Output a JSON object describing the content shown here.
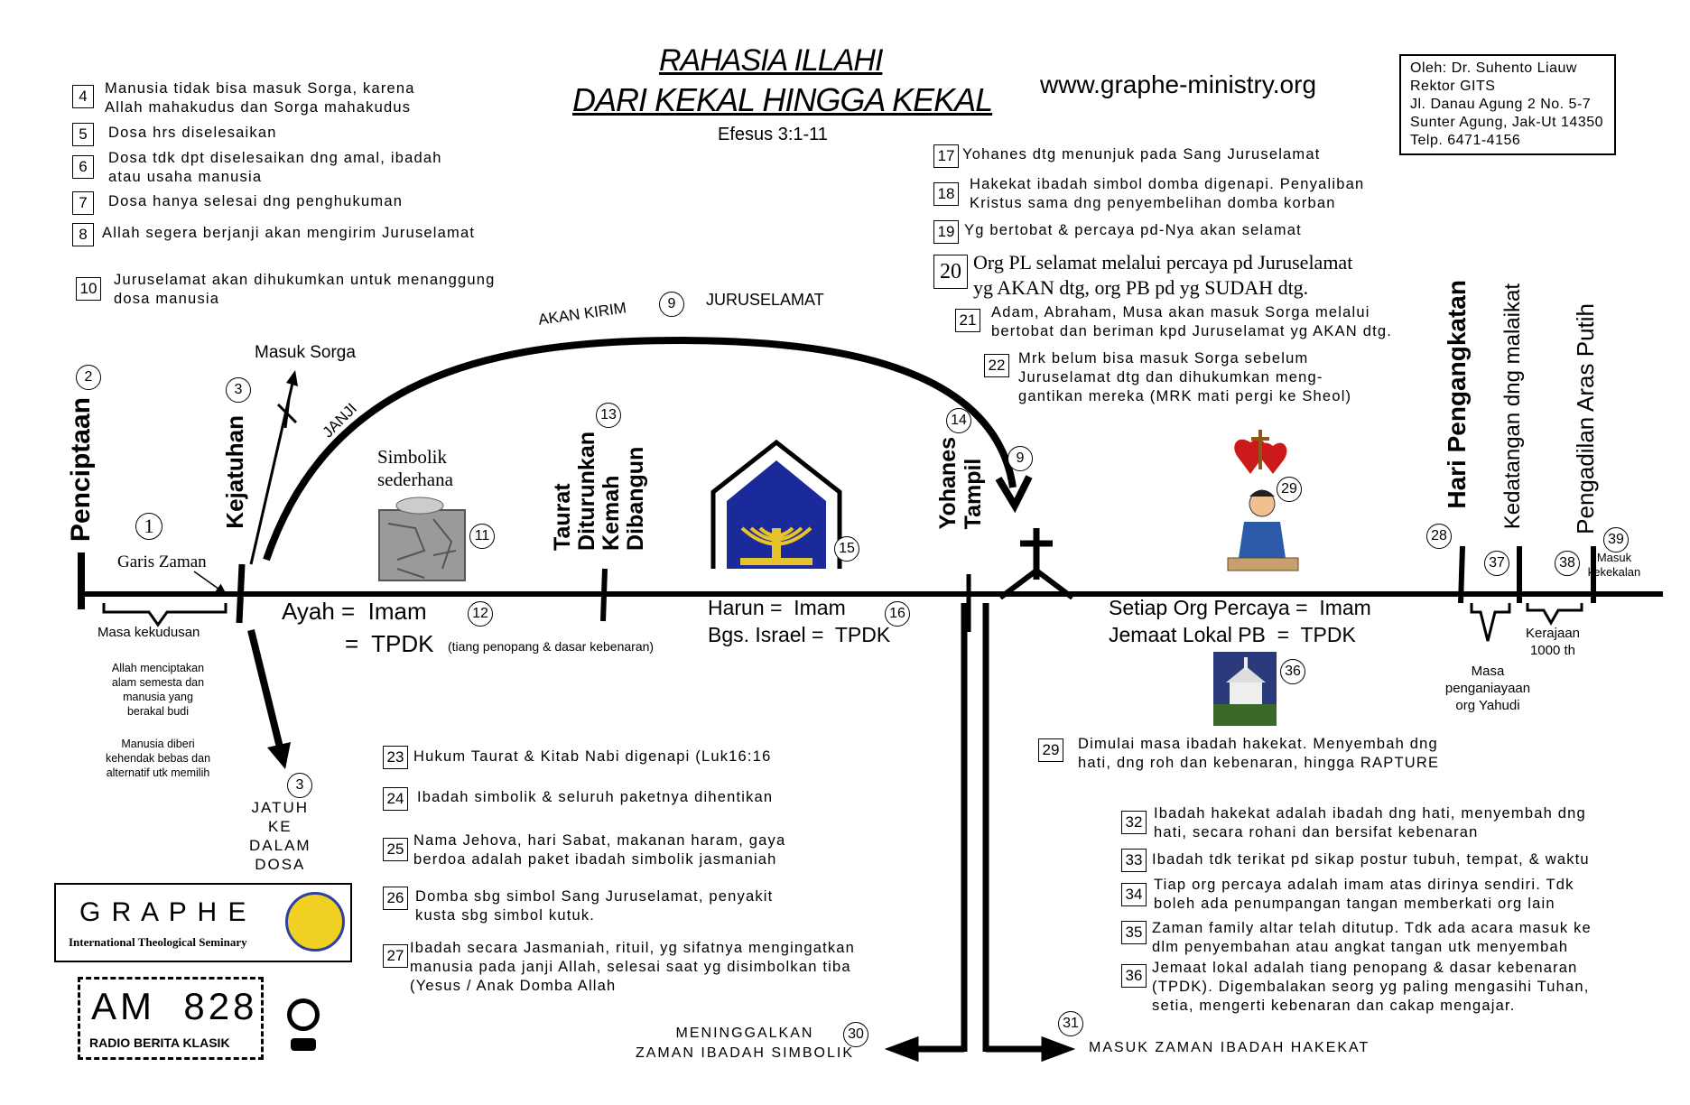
{
  "title": {
    "line1": "RAHASIA ILLAHI",
    "line2": "DARI KEKAL HINGGA KEKAL",
    "ref": "Efesus 3:1-11"
  },
  "website": "www.graphe-ministry.org",
  "author": {
    "line1": "Oleh: Dr. Suhento Liauw",
    "line2": "Rektor  GITS",
    "line3": "Jl. Danau Agung 2 No. 5-7",
    "line4": "Sunter Agung, Jak-Ut 14350",
    "line5": "Telp. 6471-4156"
  },
  "notes": [
    {
      "num": "4",
      "text": "Manusia tidak bisa masuk Sorga, karena\nAllah mahakudus dan Sorga mahakudus"
    },
    {
      "num": "5",
      "text": "Dosa hrs diselesaikan"
    },
    {
      "num": "6",
      "text": "Dosa tdk dpt diselesaikan dng amal, ibadah\natau usaha manusia"
    },
    {
      "num": "7",
      "text": "Dosa hanya selesai dng penghukuman"
    },
    {
      "num": "8",
      "text": "Allah segera berjanji akan mengirim Juruselamat"
    },
    {
      "num": "10",
      "text": "Juruselamat akan dihukumkan untuk menanggung\ndosa manusia"
    },
    {
      "num": "17",
      "text": "Yohanes dtg menunjuk pada Sang Juruselamat"
    },
    {
      "num": "18",
      "text": "Hakekat ibadah simbol domba digenapi.  Penyaliban\nKristus sama dng penyembelihan domba korban"
    },
    {
      "num": "19",
      "text": "Yg bertobat & percaya pd-Nya akan selamat"
    },
    {
      "num": "20",
      "text": "Org PL selamat melalui percaya pd Juruselamat\nyg AKAN dtg, org PB pd yg SUDAH dtg."
    },
    {
      "num": "21",
      "text": "Adam, Abraham, Musa akan masuk Sorga melalui\nbertobat dan beriman kpd Juruselamat yg AKAN dtg."
    },
    {
      "num": "22",
      "text": "Mrk belum bisa masuk Sorga sebelum\nJuruselamat dtg dan dihukumkan meng-\ngantikan mereka (MRK mati pergi ke Sheol)"
    },
    {
      "num": "23",
      "text": "Hukum Taurat & Kitab Nabi digenapi (Luk16:16"
    },
    {
      "num": "24",
      "text": "Ibadah simbolik & seluruh paketnya dihentikan"
    },
    {
      "num": "25",
      "text": "Nama Jehova, hari Sabat, makanan haram, gaya\nberdoa adalah paket ibadah simbolik jasmaniah"
    },
    {
      "num": "26",
      "text": "Domba sbg simbol Sang Juruselamat, penyakit\nkusta sbg simbol kutuk."
    },
    {
      "num": "27",
      "text": "Ibadah secara Jasmaniah, rituil, yg sifatnya mengingatkan\nmanusia pada janji Allah, selesai saat yg disimbolkan tiba\n(Yesus / Anak Domba Allah"
    },
    {
      "num": "29",
      "text": "Dimulai masa ibadah hakekat.  Menyembah dng\nhati, dng roh dan kebenaran, hingga RAPTURE"
    },
    {
      "num": "32",
      "text": "Ibadah hakekat adalah ibadah dng hati, menyembah dng\nhati, secara rohani dan bersifat kebenaran"
    },
    {
      "num": "33",
      "text": "Ibadah tdk terikat pd sikap postur tubuh, tempat, & waktu"
    },
    {
      "num": "34",
      "text": "Tiap org percaya adalah imam atas dirinya sendiri.  Tdk\nboleh ada penumpangan tangan memberkati org lain"
    },
    {
      "num": "35",
      "text": "Zaman family altar telah ditutup.  Tdk ada acara masuk ke\ndlm penyembahan atau angkat tangan utk menyembah"
    },
    {
      "num": "36",
      "text": "Jemaat lokal adalah tiang penopang & dasar kebenaran\n(TPDK).  Digembalakan seorg yg paling mengasihi Tuhan,\nsetia, mengerti kebenaran dan cakap mengajar."
    }
  ],
  "timeline": {
    "penciptaan": "Penciptaan",
    "kejatuhan": "Kejatuhan",
    "taurat": "Taurat\nDiturunkan\nKemah\nDibangun",
    "yohanes": "Yohanes\nTampil",
    "hari_pengangkatan": "Hari Pengangkatan",
    "kedatangan": "Kedatangan dng malaikat",
    "pengadilan": "Pengadilan Aras Putih",
    "garis_zaman": "Garis Zaman",
    "masa_kekudusan": "Masa kekudusan",
    "allah_menciptakan": "Allah menciptakan\nalam semesta dan\nmanusia yang\nberakal budi",
    "manusia_diberi": "Manusia diberi\nkehendak bebas dan\nalternatif utk memilih",
    "masuk_sorga": "Masuk Sorga",
    "janji": "JANJI",
    "akan_kirim": "AKAN KIRIM",
    "juruselamat": "JURUSELAMAT",
    "simbolik": "Simbolik\nsederhana",
    "jatuh": "JATUH\nKE\nDALAM\nDOSA",
    "ayah_imam": "Ayah =  Imam",
    "ayah_tpdk": "=  TPDK",
    "ayah_tiang": "(tiang penopang &  dasar kebenaran)",
    "harun": "Harun =  Imam",
    "bgs_israel": "Bgs. Israel =  TPDK",
    "setiap_org": "Setiap Org Percaya =  Imam",
    "jemaat_lokal": "Jemaat Lokal PB  =  TPDK",
    "masa_penganiayaan": "Masa\npenganiayaan\norg Yahudi",
    "kerajaan": "Kerajaan\n1000 th",
    "masuk_kekekalan": "Masuk\nkekekalan",
    "meninggalkan": "MENINGGALKAN\nZAMAN IBADAH SIMBOLIK",
    "masuk_zaman": "MASUK ZAMAN IBADAH HAKEKAT"
  },
  "circles": {
    "c1": "1",
    "c2": "2",
    "c3a": "3",
    "c3b": "3",
    "c9a": "9",
    "c9b": "9",
    "c11": "11",
    "c12": "12",
    "c13": "13",
    "c14": "14",
    "c15": "15",
    "c16": "16",
    "c28": "28",
    "c29": "29",
    "c30": "30",
    "c31": "31",
    "c36": "36",
    "c37": "37",
    "c38": "38",
    "c39": "39"
  },
  "logo": {
    "graphe": "G R A P H E",
    "seminary": "International Theological Seminary",
    "am": "AM  828",
    "radio": "RADIO BERITA KLASIK"
  }
}
